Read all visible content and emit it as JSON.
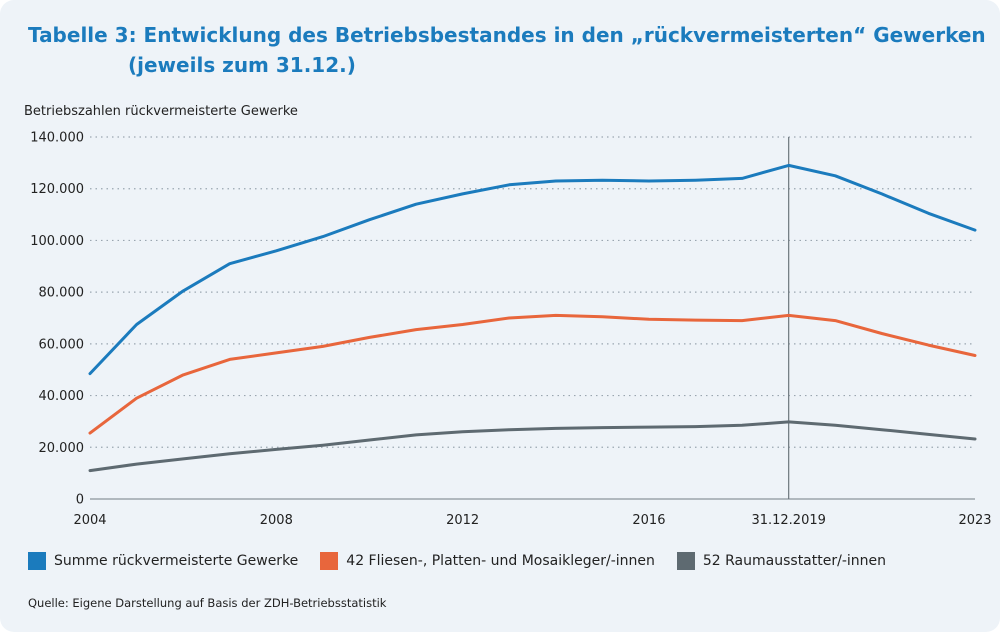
{
  "header": {
    "title_line1": "Tabelle 3: Entwicklung des Betriebsbestandes in den „rückvermeisterten“ Gewerken",
    "title_line2": "(jeweils zum 31.12.)"
  },
  "source_note": "Quelle: Eigene Darstellung auf Basis der ZDH-Betriebsstatistik",
  "chart_data": {
    "type": "line",
    "ylabel": "Betriebszahlen rückvermeisterte Gewerke",
    "xlabel": "",
    "ylim": [
      0,
      140000
    ],
    "yticks": [
      0,
      20000,
      40000,
      60000,
      80000,
      100000,
      120000,
      140000
    ],
    "ytick_labels": [
      "0",
      "20.000",
      "40.000",
      "60.000",
      "80.000",
      "100.000",
      "120.000",
      "140.000"
    ],
    "xlim": [
      2004,
      2023
    ],
    "xticks": [
      2004,
      2008,
      2012,
      2016,
      2019,
      2023
    ],
    "xtick_labels": [
      "2004",
      "2008",
      "2012",
      "2016",
      "31.12.2019",
      "2023"
    ],
    "marker_line_x": 2019,
    "grid": "horizontal dotted",
    "x": [
      2004,
      2005,
      2006,
      2007,
      2008,
      2009,
      2010,
      2011,
      2012,
      2013,
      2014,
      2015,
      2016,
      2017,
      2018,
      2019,
      2020,
      2021,
      2022,
      2023
    ],
    "series": [
      {
        "name": "Summe rückvermeisterte Gewerke",
        "color": "#1b7bbd",
        "values": [
          48500,
          67500,
          80500,
          91000,
          96000,
          101500,
          108000,
          114000,
          118000,
          121500,
          123000,
          123300,
          123000,
          123300,
          124000,
          129000,
          125000,
          118000,
          110500,
          104000
        ]
      },
      {
        "name": "42 Fliesen-, Platten- und Mosaikleger/-innen",
        "color": "#e8663c",
        "values": [
          25500,
          39000,
          48000,
          54000,
          56500,
          59000,
          62500,
          65500,
          67500,
          70000,
          71000,
          70500,
          69500,
          69200,
          69000,
          71000,
          69000,
          64000,
          59500,
          55500
        ]
      },
      {
        "name": "52 Raumausstatter/-innen",
        "color": "#5e6a71",
        "values": [
          11000,
          13500,
          15500,
          17500,
          19200,
          20800,
          22800,
          24800,
          26000,
          26800,
          27300,
          27600,
          27800,
          28000,
          28500,
          29800,
          28500,
          26800,
          25000,
          23200
        ]
      }
    ]
  }
}
